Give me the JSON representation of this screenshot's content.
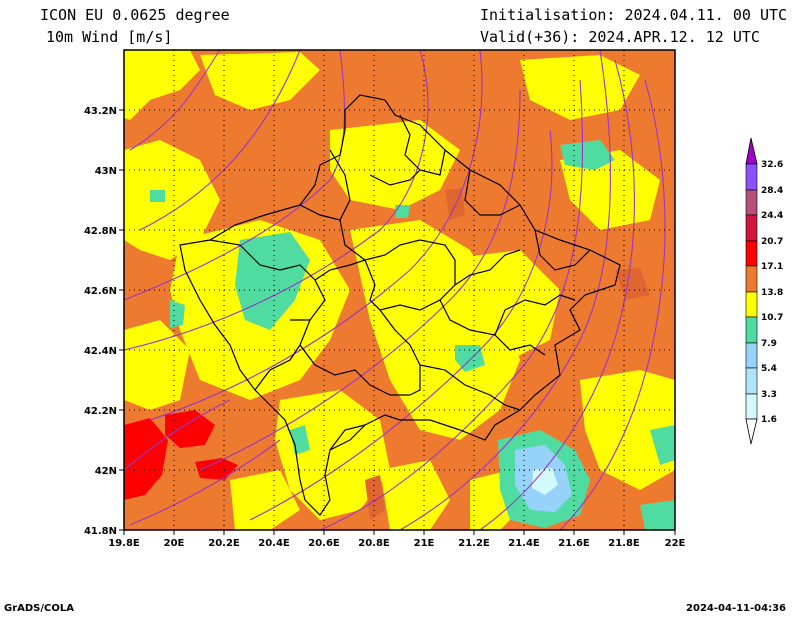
{
  "header": {
    "model": "ICON EU 0.0625 degree",
    "field": "10m Wind [m/s]",
    "init": "Initialisation: 2024.04.11. 00 UTC",
    "valid": "Valid(+36): 2024.APR.12. 12 UTC"
  },
  "map": {
    "lon_labels": [
      "19.8E",
      "20E",
      "20.2E",
      "20.4E",
      "20.6E",
      "20.8E",
      "21E",
      "21.2E",
      "21.4E",
      "21.6E",
      "21.8E",
      "22E"
    ],
    "lat_labels": [
      "43.2N",
      "43N",
      "42.8N",
      "42.6N",
      "42.4N",
      "42.2N",
      "42N",
      "41.8N"
    ],
    "lon_range": [
      19.8,
      22.0
    ],
    "lat_range": [
      41.8,
      43.4
    ],
    "grid": "dotted"
  },
  "legend": {
    "values": [
      "32.6",
      "28.4",
      "24.4",
      "20.7",
      "17.1",
      "13.8",
      "10.7",
      "7.9",
      "5.4",
      "3.3",
      "1.6"
    ],
    "colors": [
      "#a000c8",
      "#8c50ff",
      "#b4507a",
      "#d2143c",
      "#ff0000",
      "#ee7a30",
      "#ffff00",
      "#50dca0",
      "#96d2fa",
      "#d2faff",
      "#ffffff"
    ]
  },
  "footer": {
    "left": "GrADS/COLA",
    "right": "2024-04-11-04:36"
  }
}
